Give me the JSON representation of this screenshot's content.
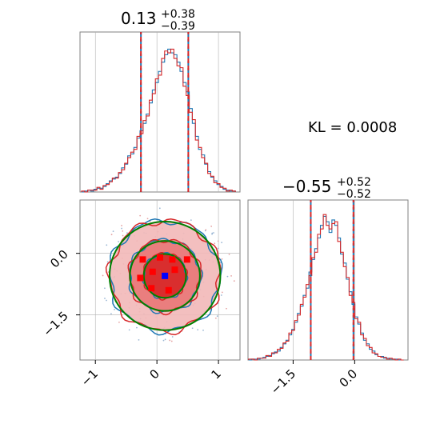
{
  "colors": {
    "primary_series": "#1f77b4",
    "secondary_series": "#d62728",
    "gaussian_fit": "#008000",
    "true_point": "#0000ff",
    "sample_points": "#ff0000",
    "gridlines": "#b0b0b0",
    "frame": "#808080"
  },
  "kl_annotation": "KL = 0.0008",
  "chart_data": [
    {
      "type": "histogram",
      "panel": "marginal-x1",
      "title_value": "0.13",
      "title_plus": "+0.38",
      "title_minus": "−0.39",
      "xlim": [
        -1.25,
        1.35
      ],
      "quantile_lines": [
        -0.26,
        0.13,
        0.51
      ],
      "bins": [
        -1.2,
        -1.15,
        -1.1,
        -1.05,
        -1.0,
        -0.95,
        -0.9,
        -0.85,
        -0.8,
        -0.75,
        -0.7,
        -0.65,
        -0.6,
        -0.55,
        -0.5,
        -0.45,
        -0.4,
        -0.35,
        -0.3,
        -0.25,
        -0.2,
        -0.15,
        -0.1,
        -0.05,
        0.0,
        0.05,
        0.1,
        0.15,
        0.2,
        0.25,
        0.3,
        0.35,
        0.4,
        0.45,
        0.5,
        0.55,
        0.6,
        0.65,
        0.7,
        0.75,
        0.8,
        0.85,
        0.9,
        0.95,
        1.0,
        1.05,
        1.1,
        1.15,
        1.2,
        1.25,
        1.3
      ],
      "series": [
        {
          "name": "",
          "values": [
            0,
            1,
            2,
            1,
            3,
            4,
            4,
            6,
            9,
            12,
            14,
            16,
            20,
            26,
            30,
            39,
            41,
            48,
            58,
            66,
            74,
            84,
            96,
            110,
            118,
            130,
            140,
            148,
            154,
            150,
            148,
            140,
            130,
            118,
            108,
            90,
            74,
            60,
            46,
            40,
            30,
            22,
            16,
            12,
            8,
            6,
            3,
            2,
            1,
            1
          ]
        },
        {
          "name": "",
          "values": [
            1,
            0,
            2,
            2,
            2,
            5,
            3,
            7,
            8,
            11,
            15,
            15,
            21,
            24,
            31,
            37,
            43,
            46,
            60,
            63,
            77,
            82,
            99,
            106,
            122,
            126,
            144,
            152,
            150,
            154,
            144,
            136,
            134,
            114,
            104,
            86,
            78,
            56,
            48,
            37,
            31,
            20,
            17,
            10,
            9,
            5,
            4,
            1,
            2,
            1
          ]
        }
      ]
    },
    {
      "type": "contour",
      "panel": "joint",
      "xlim": [
        -1.25,
        1.35
      ],
      "ylim": [
        -2.6,
        1.3
      ],
      "true_point": [
        0.13,
        -0.55
      ],
      "samples": [
        [
          -0.23,
          -0.15
        ],
        [
          0.05,
          -0.1
        ],
        [
          0.25,
          -0.15
        ],
        [
          0.49,
          -0.15
        ],
        [
          -0.27,
          -0.6
        ],
        [
          -0.07,
          -0.45
        ],
        [
          0.29,
          -0.4
        ],
        [
          -0.09,
          -0.85
        ],
        [
          0.19,
          -0.9
        ]
      ],
      "levels": [
        {
          "rx": 0.35,
          "ry": 0.55
        },
        {
          "rx": 0.58,
          "ry": 0.88
        },
        {
          "rx": 0.9,
          "ry": 1.35
        }
      ]
    },
    {
      "type": "histogram",
      "panel": "marginal-x2",
      "title_value": "−0.55",
      "title_plus": "+0.52",
      "title_minus": "−0.52",
      "xlim": [
        -2.6,
        1.3
      ],
      "quantile_lines": [
        -1.07,
        -0.55,
        -0.03
      ],
      "bins": [
        -2.55,
        -2.48,
        -2.41,
        -2.34,
        -2.27,
        -2.2,
        -2.13,
        -2.06,
        -1.99,
        -1.92,
        -1.85,
        -1.78,
        -1.71,
        -1.64,
        -1.57,
        -1.5,
        -1.43,
        -1.36,
        -1.29,
        -1.22,
        -1.15,
        -1.08,
        -1.01,
        -0.94,
        -0.87,
        -0.8,
        -0.73,
        -0.66,
        -0.59,
        -0.52,
        -0.45,
        -0.38,
        -0.31,
        -0.24,
        -0.17,
        -0.1,
        -0.03,
        0.04,
        0.11,
        0.18,
        0.25,
        0.32,
        0.39,
        0.46,
        0.53,
        0.6,
        0.67,
        0.74,
        0.81,
        0.88,
        0.95,
        1.02,
        1.09,
        1.16,
        1.23
      ],
      "series": [
        {
          "name": "",
          "values": [
            0,
            1,
            1,
            1,
            2,
            3,
            4,
            5,
            7,
            9,
            10,
            14,
            18,
            22,
            28,
            34,
            42,
            52,
            60,
            72,
            80,
            98,
            112,
            124,
            136,
            150,
            160,
            154,
            142,
            156,
            150,
            136,
            118,
            108,
            90,
            76,
            62,
            48,
            40,
            30,
            22,
            18,
            12,
            10,
            6,
            4,
            4,
            2,
            2,
            1,
            1,
            1,
            0,
            0
          ]
        },
        {
          "name": "",
          "values": [
            1,
            1,
            0,
            2,
            2,
            2,
            5,
            4,
            8,
            8,
            12,
            13,
            19,
            21,
            30,
            33,
            44,
            50,
            62,
            70,
            84,
            94,
            114,
            120,
            140,
            146,
            162,
            150,
            146,
            152,
            154,
            132,
            120,
            104,
            92,
            72,
            64,
            46,
            42,
            28,
            24,
            16,
            14,
            8,
            7,
            4,
            3,
            3,
            1,
            2,
            1,
            0,
            1,
            0
          ]
        }
      ]
    }
  ],
  "axes": {
    "x1_ticks": [
      "−1",
      "0",
      "1"
    ],
    "x1_tick_values": [
      -1,
      0,
      1
    ],
    "x2_ticks": [
      "−1.5",
      "0.0"
    ],
    "x2_tick_values": [
      -1.5,
      0.0
    ],
    "y2_ticks": [
      "0.0",
      "−1.5"
    ],
    "y2_tick_values": [
      0.0,
      -1.5
    ]
  }
}
